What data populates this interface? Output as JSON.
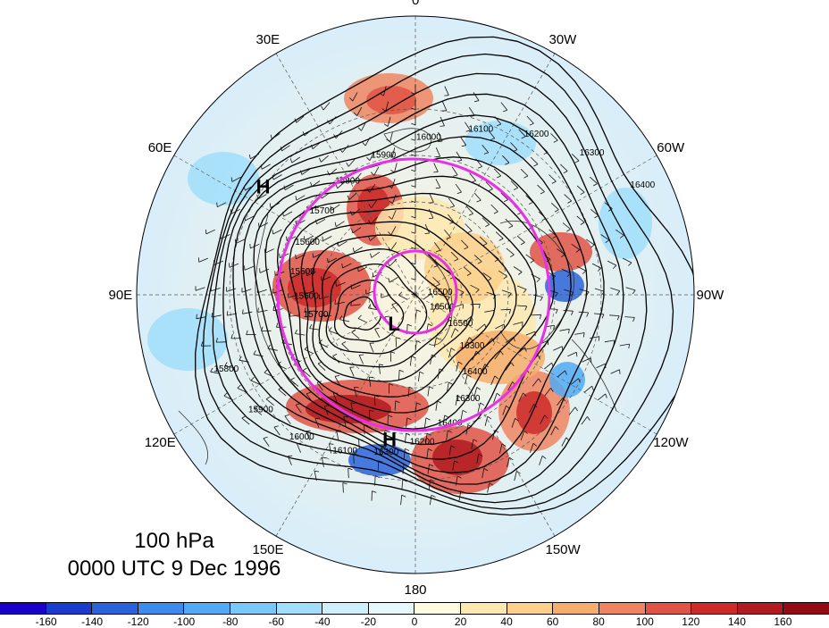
{
  "map": {
    "title_level": "100 hPa",
    "title_time": "0000 UTC 9 Dec 1996",
    "longitude_labels": [
      {
        "text": "0",
        "lon": 0
      },
      {
        "text": "30E",
        "lon": 30
      },
      {
        "text": "60E",
        "lon": 60
      },
      {
        "text": "90E",
        "lon": 90
      },
      {
        "text": "120E",
        "lon": 120
      },
      {
        "text": "150E",
        "lon": 150
      },
      {
        "text": "180",
        "lon": 180
      },
      {
        "text": "150W",
        "lon": -150
      },
      {
        "text": "120W",
        "lon": -120
      },
      {
        "text": "90W",
        "lon": -90
      },
      {
        "text": "60W",
        "lon": -60
      },
      {
        "text": "30W",
        "lon": -30
      }
    ],
    "pressure_centers": [
      {
        "label": "L",
        "lat": 78,
        "lon": 145
      },
      {
        "label": "H",
        "lat": 42,
        "lon": 170
      },
      {
        "label": "H",
        "lat": 30,
        "lon": 55
      }
    ],
    "contour_labels": [
      "16500",
      "16500",
      "16300",
      "16400",
      "16300",
      "16400",
      "16200",
      "16300",
      "16100",
      "16000",
      "15900",
      "15800",
      "15700",
      "15600",
      "15500",
      "15600",
      "15700",
      "15800",
      "15900",
      "16000",
      "16100",
      "16200",
      "16300",
      "16400",
      "16500"
    ],
    "highlight_color": "#e830e8",
    "contour_color": "#000000"
  },
  "colorbar": {
    "colors": [
      "#1a00c8",
      "#1a3ccd",
      "#2a64db",
      "#3c8cee",
      "#50aaf5",
      "#78c8fa",
      "#a0defc",
      "#cdf0fc",
      "#e6f8fc",
      "#fefce0",
      "#fde9b0",
      "#fcd08a",
      "#f6ae6c",
      "#ee8560",
      "#e05446",
      "#cd2a2a",
      "#b01a20",
      "#960a14"
    ],
    "ticks": [
      "-160",
      "-140",
      "-120",
      "-100",
      "-80",
      "-60",
      "-40",
      "-20",
      "0",
      "20",
      "40",
      "60",
      "80",
      "100",
      "120",
      "140",
      "160"
    ]
  }
}
